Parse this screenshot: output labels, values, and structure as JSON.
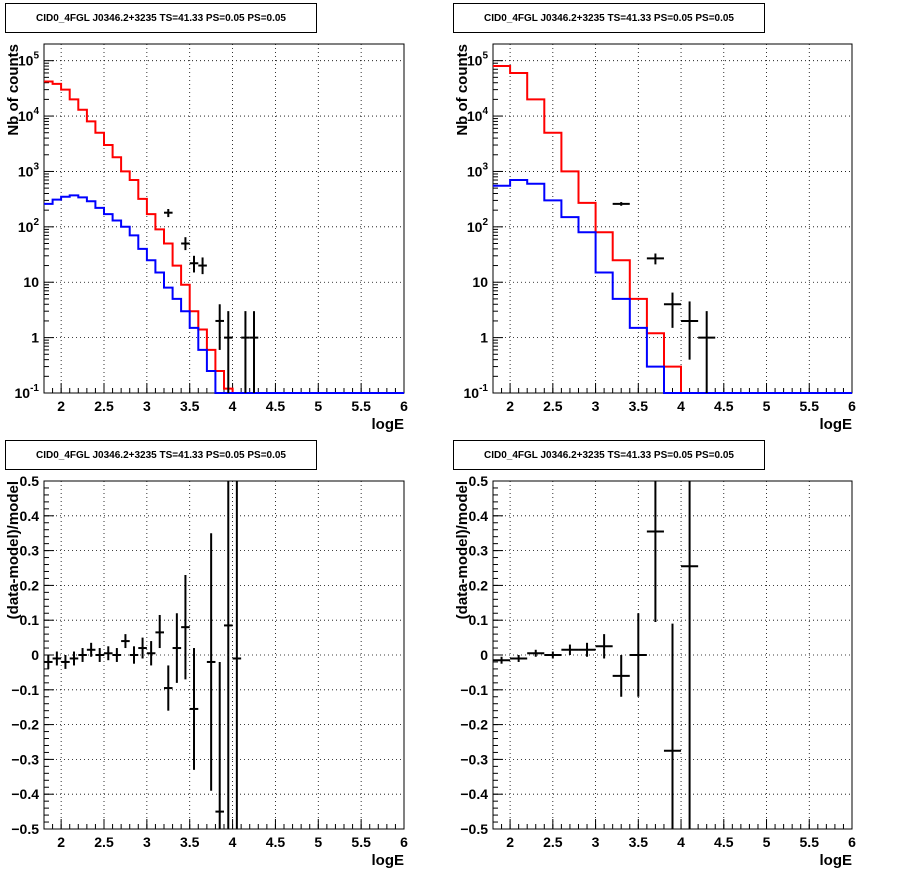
{
  "chart_data": [
    {
      "type": "line",
      "title": "CID0_4FGL J0346.2+3235 TS=41.33 PS=0.05 PS=0.05",
      "xlabel": "logE",
      "ylabel": "Nb of counts",
      "xlim": [
        1.8,
        6.0
      ],
      "ylim": [
        0.1,
        200000
      ],
      "yscale": "log",
      "grid": true,
      "xticks": [
        "2",
        "2.5",
        "3",
        "3.5",
        "4",
        "4.5",
        "5",
        "5.5",
        "6"
      ],
      "yticks": [
        {
          "v": 0.1,
          "t": "10",
          "e": "-1"
        },
        {
          "v": 1,
          "t": "1"
        },
        {
          "v": 10,
          "t": "10"
        },
        {
          "v": 100,
          "t": "10",
          "e": "2"
        },
        {
          "v": 1000,
          "t": "10",
          "e": "3"
        },
        {
          "v": 10000,
          "t": "10",
          "e": "4"
        },
        {
          "v": 100000,
          "t": "10",
          "e": "5"
        }
      ],
      "series": [
        {
          "color": "#ff0000",
          "kind": "hist",
          "x0": 1.8,
          "dx": 0.1,
          "values": [
            42000,
            38000,
            30000,
            20000,
            13000,
            8000,
            5000,
            3000,
            1800,
            1000,
            700,
            320,
            170,
            90,
            50,
            20,
            9,
            3,
            1.4,
            0.6,
            0.25,
            0.12,
            0.1,
            0.1,
            0.1,
            0.1,
            0.1,
            0.1,
            0.1,
            0.1,
            0.1,
            0.1,
            0.1,
            0.1,
            0.1,
            0.1,
            0.1,
            0.1,
            0.1,
            0.1,
            0.1,
            0.1
          ]
        },
        {
          "color": "#0000ff",
          "kind": "hist",
          "x0": 1.8,
          "dx": 0.1,
          "values": [
            260,
            310,
            350,
            370,
            340,
            290,
            220,
            170,
            130,
            100,
            70,
            40,
            25,
            15,
            8,
            5,
            3,
            1.5,
            0.6,
            0.25,
            0.1,
            0.1,
            0.1,
            0.1,
            0.1,
            0.1,
            0.1,
            0.1,
            0.1,
            0.1,
            0.1,
            0.1,
            0.1,
            0.1,
            0.1,
            0.1,
            0.1,
            0.1,
            0.1,
            0.1,
            0.1,
            0.1
          ]
        },
        {
          "color": "#000000",
          "kind": "errorbar",
          "points": [
            {
              "x": 3.25,
              "y": 180,
              "xerr": 0.05,
              "lo": 150,
              "hi": 210
            },
            {
              "x": 3.45,
              "y": 50,
              "xerr": 0.05,
              "lo": 38,
              "hi": 65
            },
            {
              "x": 3.55,
              "y": 22,
              "xerr": 0.05,
              "lo": 15,
              "hi": 30
            },
            {
              "x": 3.65,
              "y": 20,
              "xerr": 0.05,
              "lo": 14,
              "hi": 28
            },
            {
              "x": 3.85,
              "y": 2,
              "xerr": 0.05,
              "lo": 0.6,
              "hi": 4
            },
            {
              "x": 3.95,
              "y": 1,
              "xerr": 0.05,
              "lo": 0.1,
              "hi": 3
            },
            {
              "x": 4.15,
              "y": 1,
              "xerr": 0.05,
              "lo": 0.1,
              "hi": 3
            },
            {
              "x": 4.25,
              "y": 1,
              "xerr": 0.05,
              "lo": 0.1,
              "hi": 3
            }
          ]
        }
      ]
    },
    {
      "type": "line",
      "title": "CID0_4FGL J0346.2+3235 TS=41.33 PS=0.05 PS=0.05",
      "xlabel": "logE",
      "ylabel": "Nb of counts",
      "xlim": [
        1.8,
        6.0
      ],
      "ylim": [
        0.1,
        200000
      ],
      "yscale": "log",
      "grid": true,
      "xticks": [
        "2",
        "2.5",
        "3",
        "3.5",
        "4",
        "4.5",
        "5",
        "5.5",
        "6"
      ],
      "yticks": [
        {
          "v": 0.1,
          "t": "10",
          "e": "-1"
        },
        {
          "v": 1,
          "t": "1"
        },
        {
          "v": 10,
          "t": "10"
        },
        {
          "v": 100,
          "t": "10",
          "e": "2"
        },
        {
          "v": 1000,
          "t": "10",
          "e": "3"
        },
        {
          "v": 10000,
          "t": "10",
          "e": "4"
        },
        {
          "v": 100000,
          "t": "10",
          "e": "5"
        }
      ],
      "series": [
        {
          "color": "#ff0000",
          "kind": "hist",
          "x0": 1.8,
          "dx": 0.2,
          "values": [
            80000,
            60000,
            20000,
            5000,
            1000,
            270,
            80,
            25,
            5,
            1.2,
            0.3,
            0.1,
            0.1,
            0.1,
            0.1,
            0.1,
            0.1,
            0.1,
            0.1,
            0.1,
            0.1
          ]
        },
        {
          "color": "#0000ff",
          "kind": "hist",
          "x0": 1.8,
          "dx": 0.2,
          "values": [
            550,
            700,
            600,
            300,
            150,
            80,
            15,
            5,
            1.5,
            0.3,
            0.1,
            0.1,
            0.1,
            0.1,
            0.1,
            0.1,
            0.1,
            0.1,
            0.1,
            0.1,
            0.1
          ]
        },
        {
          "color": "#000000",
          "kind": "errorbar",
          "points": [
            {
              "x": 3.3,
              "y": 260,
              "xerr": 0.1,
              "lo": 240,
              "hi": 280
            },
            {
              "x": 3.7,
              "y": 27,
              "xerr": 0.1,
              "lo": 21,
              "hi": 33
            },
            {
              "x": 3.9,
              "y": 4,
              "xerr": 0.1,
              "lo": 1.5,
              "hi": 6.5
            },
            {
              "x": 4.1,
              "y": 2,
              "xerr": 0.1,
              "lo": 0.4,
              "hi": 4.5
            },
            {
              "x": 4.3,
              "y": 1,
              "xerr": 0.1,
              "lo": 0.1,
              "hi": 3
            }
          ]
        }
      ]
    },
    {
      "type": "scatter",
      "title": "CID0_4FGL J0346.2+3235 TS=41.33 PS=0.05 PS=0.05",
      "xlabel": "logE",
      "ylabel": "(data-model)/model",
      "xlim": [
        1.8,
        6.0
      ],
      "ylim": [
        -0.5,
        0.5
      ],
      "yscale": "linear",
      "grid": true,
      "xticks": [
        "2",
        "2.5",
        "3",
        "3.5",
        "4",
        "4.5",
        "5",
        "5.5",
        "6"
      ],
      "yticks": [
        {
          "v": -0.5,
          "t": "−0.5"
        },
        {
          "v": -0.4,
          "t": "−0.4"
        },
        {
          "v": -0.3,
          "t": "−0.3"
        },
        {
          "v": -0.2,
          "t": "−0.2"
        },
        {
          "v": -0.1,
          "t": "−0.1"
        },
        {
          "v": 0,
          "t": "0"
        },
        {
          "v": 0.1,
          "t": "0.1"
        },
        {
          "v": 0.2,
          "t": "0.2"
        },
        {
          "v": 0.3,
          "t": "0.3"
        },
        {
          "v": 0.4,
          "t": "0.4"
        },
        {
          "v": 0.5,
          "t": "0.5"
        }
      ],
      "series": [
        {
          "color": "#000000",
          "kind": "errorbar",
          "points": [
            {
              "x": 1.85,
              "y": -0.02,
              "xerr": 0.05,
              "lo": -0.04,
              "hi": 0.0
            },
            {
              "x": 1.95,
              "y": -0.01,
              "xerr": 0.05,
              "lo": -0.03,
              "hi": 0.01
            },
            {
              "x": 2.05,
              "y": -0.02,
              "xerr": 0.05,
              "lo": -0.04,
              "hi": 0.0
            },
            {
              "x": 2.15,
              "y": -0.01,
              "xerr": 0.05,
              "lo": -0.03,
              "hi": 0.01
            },
            {
              "x": 2.25,
              "y": 0.0,
              "xerr": 0.05,
              "lo": -0.02,
              "hi": 0.02
            },
            {
              "x": 2.35,
              "y": 0.015,
              "xerr": 0.05,
              "lo": -0.005,
              "hi": 0.035
            },
            {
              "x": 2.45,
              "y": 0.0,
              "xerr": 0.05,
              "lo": -0.02,
              "hi": 0.02
            },
            {
              "x": 2.55,
              "y": 0.005,
              "xerr": 0.05,
              "lo": -0.015,
              "hi": 0.025
            },
            {
              "x": 2.65,
              "y": 0.0,
              "xerr": 0.05,
              "lo": -0.02,
              "hi": 0.02
            },
            {
              "x": 2.75,
              "y": 0.04,
              "xerr": 0.05,
              "lo": 0.02,
              "hi": 0.06
            },
            {
              "x": 2.85,
              "y": 0.0,
              "xerr": 0.05,
              "lo": -0.025,
              "hi": 0.025
            },
            {
              "x": 2.95,
              "y": 0.02,
              "xerr": 0.05,
              "lo": -0.01,
              "hi": 0.05
            },
            {
              "x": 3.05,
              "y": 0.005,
              "xerr": 0.05,
              "lo": -0.03,
              "hi": 0.04
            },
            {
              "x": 3.15,
              "y": 0.065,
              "xerr": 0.05,
              "lo": 0.02,
              "hi": 0.115
            },
            {
              "x": 3.25,
              "y": -0.095,
              "xerr": 0.05,
              "lo": -0.16,
              "hi": -0.03
            },
            {
              "x": 3.35,
              "y": 0.02,
              "xerr": 0.05,
              "lo": -0.08,
              "hi": 0.12
            },
            {
              "x": 3.45,
              "y": 0.08,
              "xerr": 0.05,
              "lo": -0.07,
              "hi": 0.23
            },
            {
              "x": 3.55,
              "y": -0.155,
              "xerr": 0.05,
              "lo": -0.33,
              "hi": 0.02
            },
            {
              "x": 3.75,
              "y": -0.02,
              "xerr": 0.05,
              "lo": -0.39,
              "hi": 0.35
            },
            {
              "x": 3.85,
              "y": -0.45,
              "xerr": 0.05,
              "lo": -0.5,
              "hi": -0.02
            },
            {
              "x": 3.95,
              "y": 0.085,
              "xerr": 0.05,
              "lo": -0.5,
              "hi": 0.5
            },
            {
              "x": 4.05,
              "y": -0.01,
              "xerr": 0.05,
              "lo": -0.5,
              "hi": 0.5
            }
          ]
        }
      ]
    },
    {
      "type": "scatter",
      "title": "CID0_4FGL J0346.2+3235 TS=41.33 PS=0.05 PS=0.05",
      "xlabel": "logE",
      "ylabel": "(data-model)/model",
      "xlim": [
        1.8,
        6.0
      ],
      "ylim": [
        -0.5,
        0.5
      ],
      "yscale": "linear",
      "grid": true,
      "xticks": [
        "2",
        "2.5",
        "3",
        "3.5",
        "4",
        "4.5",
        "5",
        "5.5",
        "6"
      ],
      "yticks": [
        {
          "v": -0.5,
          "t": "−0.5"
        },
        {
          "v": -0.4,
          "t": "−0.4"
        },
        {
          "v": -0.3,
          "t": "−0.3"
        },
        {
          "v": -0.2,
          "t": "−0.2"
        },
        {
          "v": -0.1,
          "t": "−0.1"
        },
        {
          "v": 0,
          "t": "0"
        },
        {
          "v": 0.1,
          "t": "0.1"
        },
        {
          "v": 0.2,
          "t": "0.2"
        },
        {
          "v": 0.3,
          "t": "0.3"
        },
        {
          "v": 0.4,
          "t": "0.4"
        },
        {
          "v": 0.5,
          "t": "0.5"
        }
      ],
      "series": [
        {
          "color": "#000000",
          "kind": "errorbar",
          "points": [
            {
              "x": 1.9,
              "y": -0.015,
              "xerr": 0.1,
              "lo": -0.025,
              "hi": -0.005
            },
            {
              "x": 2.1,
              "y": -0.01,
              "xerr": 0.1,
              "lo": -0.02,
              "hi": 0.0
            },
            {
              "x": 2.3,
              "y": 0.005,
              "xerr": 0.1,
              "lo": -0.005,
              "hi": 0.015
            },
            {
              "x": 2.5,
              "y": 0.0,
              "xerr": 0.1,
              "lo": -0.01,
              "hi": 0.01
            },
            {
              "x": 2.7,
              "y": 0.015,
              "xerr": 0.1,
              "lo": 0.0,
              "hi": 0.03
            },
            {
              "x": 2.9,
              "y": 0.015,
              "xerr": 0.1,
              "lo": -0.005,
              "hi": 0.035
            },
            {
              "x": 3.1,
              "y": 0.025,
              "xerr": 0.1,
              "lo": -0.01,
              "hi": 0.06
            },
            {
              "x": 3.3,
              "y": -0.06,
              "xerr": 0.1,
              "lo": -0.12,
              "hi": 0.0
            },
            {
              "x": 3.5,
              "y": 0.0,
              "xerr": 0.1,
              "lo": -0.12,
              "hi": 0.12
            },
            {
              "x": 3.7,
              "y": 0.355,
              "xerr": 0.1,
              "lo": 0.095,
              "hi": 0.5
            },
            {
              "x": 3.9,
              "y": -0.275,
              "xerr": 0.1,
              "lo": -0.5,
              "hi": 0.09
            },
            {
              "x": 4.1,
              "y": 0.255,
              "xerr": 0.1,
              "lo": -0.5,
              "hi": 0.5
            }
          ]
        }
      ]
    }
  ]
}
